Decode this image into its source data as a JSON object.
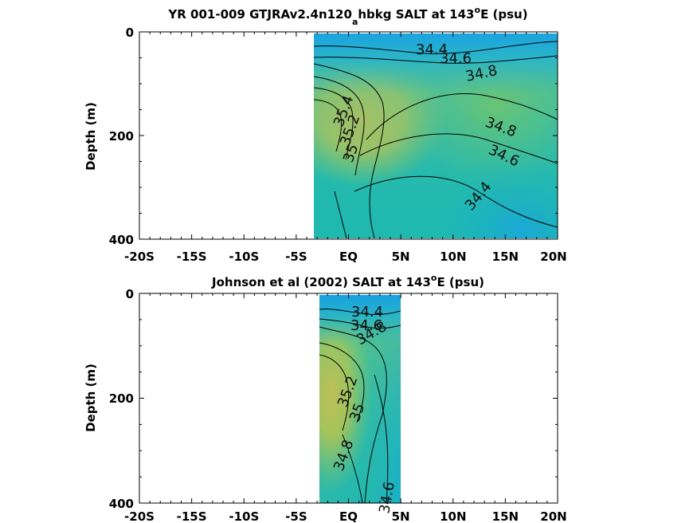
{
  "chart_data": [
    {
      "type": "heatmap",
      "title_main": "YR 001-009 GTJRAv2.4n120",
      "title_sub": "a",
      "title_rest": "hbkg SALT at 143",
      "title_sup": "o",
      "title_end": "E (psu)",
      "ylabel": "Depth (m)",
      "xlim": [
        -20,
        20
      ],
      "ylim": [
        0,
        400
      ],
      "x_ticks": [
        "-20S",
        "-15S",
        "-10S",
        "-5S",
        "EQ",
        "5N",
        "10N",
        "15N",
        "20N"
      ],
      "y_ticks": [
        "0",
        "200",
        "400"
      ],
      "data_x_range": [
        -3.5,
        20
      ],
      "contour_labels": [
        "34.4",
        "34.6",
        "34.8",
        "35.4",
        "35.2",
        "35",
        "34.8",
        "34.6",
        "34.4"
      ]
    },
    {
      "type": "heatmap",
      "title_main": "Johnson et al (2002) SALT at 143",
      "title_sup": "o",
      "title_end": "E (psu)",
      "ylabel": "Depth (m)",
      "xlim": [
        -20,
        20
      ],
      "ylim": [
        0,
        400
      ],
      "x_ticks": [
        "-20S",
        "-15S",
        "-10S",
        "-5S",
        "EQ",
        "5N",
        "10N",
        "15N",
        "20N"
      ],
      "y_ticks": [
        "0",
        "200",
        "400"
      ],
      "data_x_range": [
        -2.5,
        5
      ],
      "contour_labels": [
        "34.4",
        "34.6",
        "34.8",
        "35.2",
        "35",
        "34.8",
        "34.6"
      ]
    }
  ]
}
